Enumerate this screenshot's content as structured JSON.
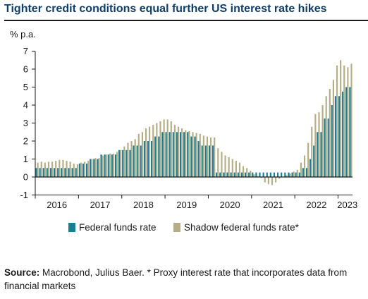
{
  "title": "Tighter credit conditions equal further US interest rate hikes",
  "source": {
    "label": "Source:",
    "text": "Macrobond, Julius Baer. * Proxy interest rate that incorporates data from financial markets"
  },
  "chart_data": {
    "type": "bar",
    "unit_label": "% p.a.",
    "ylim": [
      -1,
      7
    ],
    "yticks": [
      -1,
      0,
      1,
      2,
      3,
      4,
      5,
      6,
      7
    ],
    "xticks": [
      "2016",
      "2017",
      "2018",
      "2019",
      "2020",
      "2021",
      "2022",
      "2023"
    ],
    "grid": false,
    "legend_position": "bottom",
    "colors": {
      "fed": "#1a7d93",
      "shadow": "#b5ad85",
      "axis": "#1a1a1a"
    },
    "series": [
      {
        "name": "Federal funds rate",
        "values": [
          0.5,
          0.5,
          0.5,
          0.5,
          0.5,
          0.5,
          0.5,
          0.5,
          0.5,
          0.5,
          0.5,
          0.5,
          0.75,
          0.75,
          0.75,
          1.0,
          1.0,
          1.0,
          1.25,
          1.25,
          1.25,
          1.25,
          1.25,
          1.5,
          1.5,
          1.5,
          1.5,
          1.75,
          1.75,
          1.75,
          2.0,
          2.0,
          2.0,
          2.25,
          2.25,
          2.5,
          2.5,
          2.5,
          2.5,
          2.5,
          2.5,
          2.5,
          2.5,
          2.25,
          2.25,
          2.0,
          1.75,
          1.75,
          1.75,
          1.75,
          0.25,
          0.25,
          0.25,
          0.25,
          0.25,
          0.25,
          0.25,
          0.25,
          0.25,
          0.25,
          0.25,
          0.25,
          0.25,
          0.25,
          0.25,
          0.25,
          0.25,
          0.25,
          0.25,
          0.25,
          0.25,
          0.25,
          0.25,
          0.25,
          0.5,
          0.5,
          1.0,
          1.75,
          2.5,
          2.5,
          3.25,
          3.25,
          4.0,
          4.5,
          4.5,
          4.75,
          5.0,
          5.0
        ]
      },
      {
        "name": "Shadow federal funds rate*",
        "values": [
          0.8,
          0.85,
          0.8,
          0.85,
          0.85,
          0.9,
          0.95,
          0.95,
          0.9,
          0.85,
          0.75,
          0.7,
          0.8,
          0.85,
          0.9,
          1.0,
          1.05,
          1.05,
          1.2,
          1.25,
          1.3,
          1.3,
          1.4,
          1.5,
          1.7,
          1.9,
          2.0,
          2.1,
          2.4,
          2.5,
          2.7,
          2.8,
          2.9,
          3.0,
          3.1,
          3.2,
          3.2,
          3.1,
          2.9,
          2.8,
          2.7,
          2.6,
          2.55,
          2.5,
          2.45,
          2.4,
          2.3,
          2.25,
          2.2,
          2.2,
          1.6,
          1.4,
          1.2,
          1.1,
          1.0,
          0.9,
          0.8,
          0.6,
          0.5,
          0.35,
          0.15,
          0.05,
          -0.05,
          -0.3,
          -0.4,
          -0.45,
          -0.3,
          -0.1,
          0.0,
          0.1,
          0.2,
          0.3,
          0.4,
          0.8,
          1.2,
          1.9,
          2.8,
          3.5,
          3.6,
          4.0,
          4.5,
          4.9,
          5.4,
          6.2,
          6.5,
          6.2,
          6.1,
          6.3,
          6.2,
          6.3
        ]
      }
    ]
  }
}
